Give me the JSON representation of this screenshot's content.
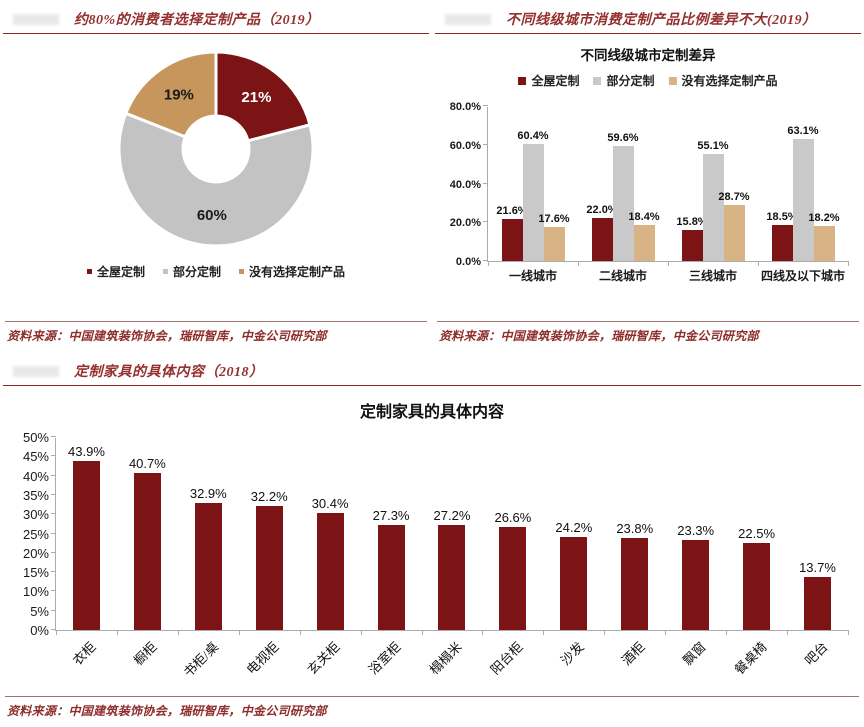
{
  "figures": {
    "pie": {
      "title": "约80%的消费者选择定制产品（2019）",
      "source": "资料来源：中国建筑装饰协会，瑞研智库，中金公司研究部"
    },
    "city": {
      "title": "不同线级城市消费定制产品比例差异不大(2019）",
      "source": "资料来源：中国建筑装饰协会，瑞研智库，中金公司研究部"
    },
    "items": {
      "title": "定制家具的具体内容（2018）",
      "source": "资料来源：中国建筑装饰协会，瑞研智库，中金公司研究部"
    }
  },
  "chart_data": [
    {
      "type": "pie",
      "labels": [
        "全屋定制",
        "部分定制",
        "没有选择定制产品"
      ],
      "values": [
        21,
        60,
        19
      ],
      "display_labels": [
        "21%",
        "60%",
        "19%"
      ],
      "colors": [
        "#7C1315",
        "#C3C3C3",
        "#C6965C"
      ],
      "label_colors": [
        "#FFFFFF",
        "#1a1a1a",
        "#1a1a1a"
      ],
      "donut": true,
      "legend_position": "bottom"
    },
    {
      "type": "bar",
      "title": "不同线级城市定制差异",
      "categories": [
        "一线城市",
        "二线城市",
        "三线城市",
        "四线及以下城市"
      ],
      "series": [
        {
          "name": "全屋定制",
          "color": "#7C1315",
          "values": [
            21.6,
            22.0,
            15.8,
            18.5
          ],
          "labels": [
            "21.6%",
            "22.0%",
            "15.8%",
            "18.5%"
          ]
        },
        {
          "name": "部分定制",
          "color": "#C9C9C9",
          "values": [
            60.4,
            59.6,
            55.1,
            63.1
          ],
          "labels": [
            "60.4%",
            "59.6%",
            "55.1%",
            "63.1%"
          ]
        },
        {
          "name": "没有选择定制产品",
          "color": "#D8B383",
          "values": [
            17.6,
            18.4,
            28.7,
            18.2
          ],
          "labels": [
            "17.6%",
            "18.4%",
            "28.7%",
            "18.2%"
          ]
        }
      ],
      "ylim": [
        0,
        80
      ],
      "y_tick_values": [
        0,
        20,
        40,
        60,
        80
      ],
      "y_tick_labels": [
        "0.0%",
        "20.0%",
        "40.0%",
        "60.0%",
        "80.0%"
      ],
      "grid": false,
      "legend_position": "top"
    },
    {
      "type": "bar",
      "title": "定制家具的具体内容",
      "categories": [
        "衣柜",
        "橱柜",
        "书柜/桌",
        "电视柜",
        "玄关柜",
        "浴室柜",
        "榻榻米",
        "阳台柜",
        "沙发",
        "酒柜",
        "飘窗",
        "餐桌椅",
        "吧台"
      ],
      "values": [
        43.9,
        40.7,
        32.9,
        32.2,
        30.4,
        27.3,
        27.2,
        26.6,
        24.2,
        23.8,
        23.3,
        22.5,
        13.7
      ],
      "labels": [
        "43.9%",
        "40.7%",
        "32.9%",
        "32.2%",
        "30.4%",
        "27.3%",
        "27.2%",
        "26.6%",
        "24.2%",
        "23.8%",
        "23.3%",
        "22.5%",
        "13.7%"
      ],
      "bar_color": "#7C1315",
      "ylim": [
        0,
        50
      ],
      "y_tick_values": [
        0,
        5,
        10,
        15,
        20,
        25,
        30,
        35,
        40,
        45,
        50
      ],
      "y_tick_labels": [
        "0%",
        "5%",
        "10%",
        "15%",
        "20%",
        "25%",
        "30%",
        "35%",
        "40%",
        "45%",
        "50%"
      ],
      "grid": false
    }
  ]
}
